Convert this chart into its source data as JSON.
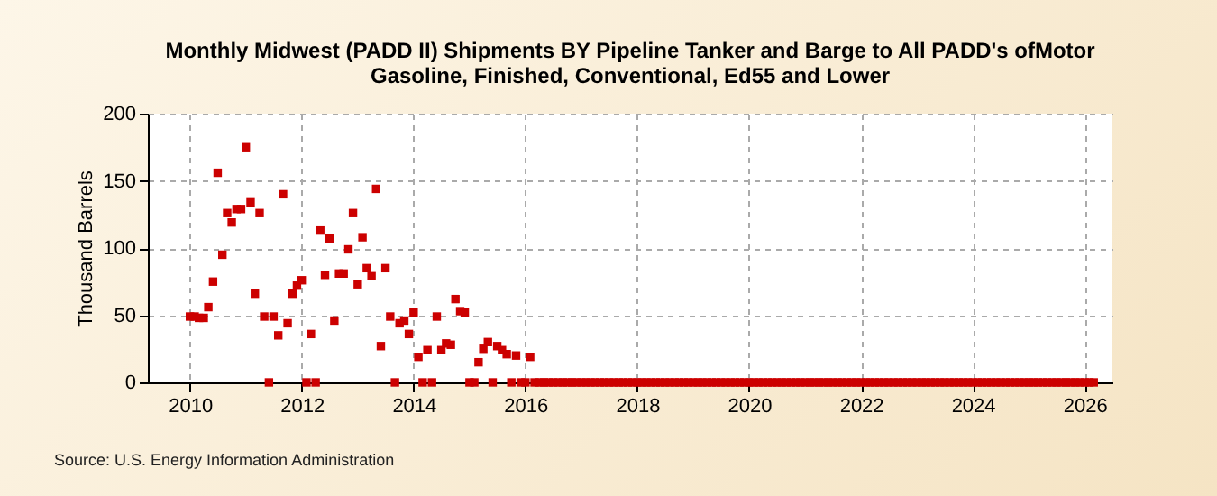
{
  "chart_data": {
    "type": "scatter",
    "title": "Monthly Midwest (PADD II) Shipments BY Pipeline Tanker and Barge to All PADD's ofMotor Gasoline, Finished, Conventional, Ed55 and Lower",
    "ylabel": "Thousand Barrels",
    "annotations": [
      "Source: U.S. Energy Information Administration"
    ],
    "x": [
      "2010-01",
      "2010-02",
      "2010-03",
      "2010-04",
      "2010-05",
      "2010-06",
      "2010-07",
      "2010-08",
      "2010-09",
      "2010-10",
      "2010-11",
      "2010-12",
      "2011-01",
      "2011-02",
      "2011-03",
      "2011-04",
      "2011-05",
      "2011-06",
      "2011-07",
      "2011-08",
      "2011-09",
      "2011-10",
      "2011-11",
      "2011-12",
      "2012-01",
      "2012-02",
      "2012-03",
      "2012-04",
      "2012-05",
      "2012-06",
      "2012-07",
      "2012-08",
      "2012-09",
      "2012-10",
      "2012-11",
      "2012-12",
      "2013-01",
      "2013-02",
      "2013-03",
      "2013-04",
      "2013-05",
      "2013-06",
      "2013-07",
      "2013-08",
      "2013-09",
      "2013-10",
      "2013-11",
      "2013-12",
      "2014-01",
      "2014-02",
      "2014-03",
      "2014-04",
      "2014-05",
      "2014-06",
      "2014-07",
      "2014-08",
      "2014-09",
      "2014-10",
      "2014-11",
      "2014-12",
      "2015-01",
      "2015-02",
      "2015-03",
      "2015-04",
      "2015-05",
      "2015-06",
      "2015-07",
      "2015-08",
      "2015-09",
      "2015-10",
      "2015-11",
      "2015-12",
      "2016-01",
      "2016-02",
      "2016-03",
      "2016-04",
      "2016-05",
      "2016-06",
      "2016-07",
      "2016-08",
      "2016-09",
      "2016-10",
      "2016-11",
      "2016-12",
      "2017-01",
      "2017-02",
      "2017-03",
      "2017-04",
      "2017-05",
      "2017-06",
      "2017-07",
      "2017-08",
      "2017-09",
      "2017-10",
      "2017-11",
      "2017-12",
      "2018-01",
      "2018-02",
      "2018-03",
      "2018-04",
      "2018-05",
      "2018-06",
      "2018-07",
      "2018-08",
      "2018-09",
      "2018-10",
      "2018-11",
      "2018-12",
      "2019-01",
      "2019-02",
      "2019-03",
      "2019-04",
      "2019-05",
      "2019-06",
      "2019-07",
      "2019-08",
      "2019-09",
      "2019-10",
      "2019-11",
      "2019-12",
      "2020-01",
      "2020-02",
      "2020-03",
      "2020-04",
      "2020-05",
      "2020-06",
      "2020-07",
      "2020-08",
      "2020-09",
      "2020-10",
      "2020-11",
      "2020-12",
      "2021-01",
      "2021-02",
      "2021-03",
      "2021-04",
      "2021-05",
      "2021-06",
      "2021-07",
      "2021-08",
      "2021-09",
      "2021-10",
      "2021-11",
      "2021-12",
      "2022-01",
      "2022-02",
      "2022-03",
      "2022-04",
      "2022-05",
      "2022-06",
      "2022-07",
      "2022-08",
      "2022-09",
      "2022-10",
      "2022-11",
      "2022-12",
      "2023-01",
      "2023-02",
      "2023-03",
      "2023-04",
      "2023-05",
      "2023-06",
      "2023-07",
      "2023-08",
      "2023-09",
      "2023-10",
      "2023-11",
      "2023-12",
      "2024-01",
      "2024-02",
      "2024-03",
      "2024-04",
      "2024-05",
      "2024-06",
      "2024-07",
      "2024-08",
      "2024-09",
      "2024-10",
      "2024-11",
      "2024-12",
      "2025-01",
      "2025-02",
      "2025-03",
      "2025-04",
      "2025-05",
      "2025-06",
      "2025-07",
      "2025-08",
      "2025-09",
      "2025-10",
      "2025-11",
      "2025-12",
      "2026-01",
      "2026-02",
      "2026-03"
    ],
    "series": [
      {
        "color": "#cc0000",
        "values": [
          49,
          49,
          48,
          48,
          56,
          75,
          156,
          95,
          126,
          119,
          129,
          129,
          175,
          134,
          66,
          126,
          49,
          0,
          49,
          35,
          140,
          44,
          66,
          72,
          76,
          0,
          36,
          0,
          113,
          80,
          107,
          46,
          81,
          81,
          99,
          126,
          73,
          108,
          85,
          79,
          144,
          27,
          85,
          49,
          0,
          44,
          46,
          36,
          52,
          19,
          0,
          24,
          0,
          49,
          24,
          29,
          28,
          62,
          53,
          52,
          0,
          0,
          15,
          25,
          30,
          0,
          27,
          24,
          21,
          0,
          20,
          0,
          0,
          19,
          0,
          0,
          0,
          0,
          0,
          0,
          0,
          0,
          0,
          0,
          0,
          0,
          0,
          0,
          0,
          0,
          0,
          0,
          0,
          0,
          0,
          0,
          0,
          0,
          0,
          0,
          0,
          0,
          0,
          0,
          0,
          0,
          0,
          0,
          0,
          0,
          0,
          0,
          0,
          0,
          0,
          0,
          0,
          0,
          0,
          0,
          0,
          0,
          0,
          0,
          0,
          0,
          0,
          0,
          0,
          0,
          0,
          0,
          0,
          0,
          0,
          0,
          0,
          0,
          0,
          0,
          0,
          0,
          0,
          0,
          0,
          0,
          0,
          0,
          0,
          0,
          0,
          0,
          0,
          0,
          0,
          0,
          0,
          0,
          0,
          0,
          0,
          0,
          0,
          0,
          0,
          0,
          0,
          0,
          0,
          0,
          0,
          0,
          0,
          0,
          0,
          0,
          0,
          0,
          0,
          0,
          0,
          0,
          0,
          0,
          0,
          0,
          0,
          0,
          0,
          0,
          0,
          0,
          0,
          0,
          0
        ]
      }
    ],
    "xlim": [
      "2009-04",
      "2026-07"
    ],
    "xticks": [
      "2010",
      "2012",
      "2014",
      "2016",
      "2018",
      "2020",
      "2022",
      "2024",
      "2026"
    ],
    "ylim": [
      0,
      200
    ],
    "yticks": [
      0,
      50,
      100,
      150,
      200
    ],
    "grid": true,
    "marker": "square",
    "legend": false
  }
}
